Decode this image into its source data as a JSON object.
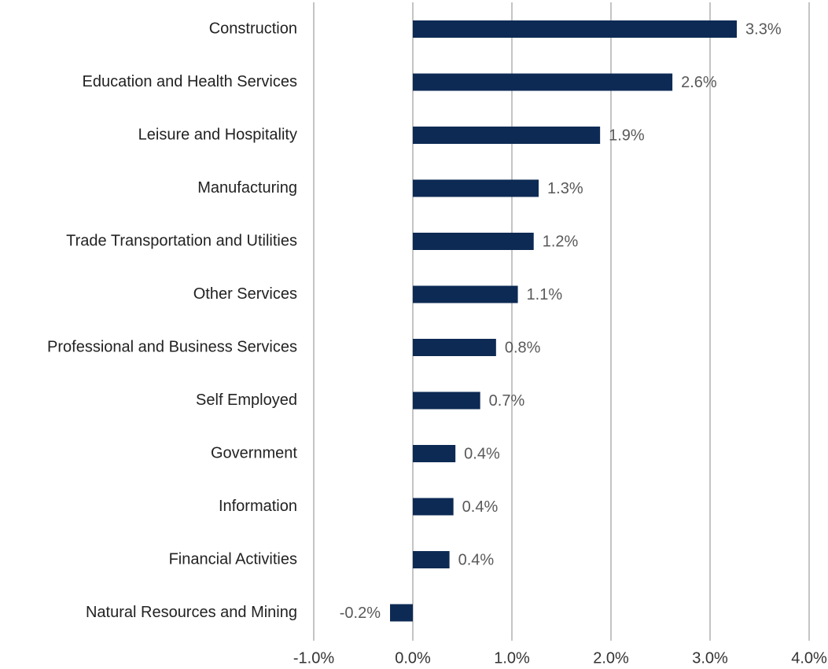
{
  "chart_data": {
    "type": "bar",
    "orientation": "horizontal",
    "categories": [
      "Construction",
      "Education and Health Services",
      "Leisure and Hospitality",
      "Manufacturing",
      "Trade Transportation and Utilities",
      "Other Services",
      "Professional and Business Services",
      "Self Employed",
      "Government",
      "Information",
      "Financial Activities",
      "Natural Resources and Mining"
    ],
    "values": [
      3.27,
      2.62,
      1.89,
      1.27,
      1.22,
      1.06,
      0.84,
      0.68,
      0.43,
      0.41,
      0.37,
      -0.23
    ],
    "value_labels": [
      "3.3%",
      "2.6%",
      "1.9%",
      "1.3%",
      "1.2%",
      "1.1%",
      "0.8%",
      "0.7%",
      "0.4%",
      "0.4%",
      "0.4%",
      "-0.2%"
    ],
    "color": "#0d2a54",
    "xlim": [
      -1,
      4
    ],
    "xticks": [
      {
        "value": -1,
        "label": "-1.0%"
      },
      {
        "value": 0,
        "label": "0.0%"
      },
      {
        "value": 1,
        "label": "1.0%"
      },
      {
        "value": 2,
        "label": "2.0%"
      },
      {
        "value": 3,
        "label": "3.0%"
      },
      {
        "value": 4,
        "label": "4.0%"
      }
    ],
    "grid": true
  }
}
